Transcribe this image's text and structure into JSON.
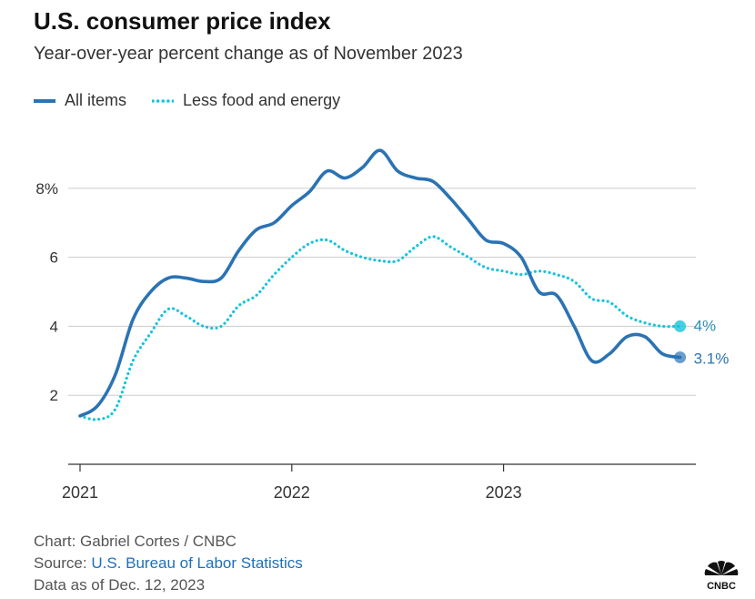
{
  "title": "U.S. consumer price index",
  "subtitle": "Year-over-year percent change as of November 2023",
  "colors": {
    "all_items": "#2b73b3",
    "core": "#19c3dc",
    "grid": "#cccccc",
    "axis": "#333333",
    "label": "#333333"
  },
  "chart_data": {
    "type": "line",
    "title": "U.S. consumer price index",
    "ylabel": "",
    "xlabel": "",
    "ylim": [
      0,
      9.5
    ],
    "y_ticks": [
      2,
      4,
      6,
      8
    ],
    "y_tick_labels": [
      "2",
      "4",
      "6",
      "8%"
    ],
    "x_ticks": [
      0,
      12,
      24
    ],
    "x_tick_labels": [
      "2021",
      "2022",
      "2023"
    ],
    "x_range": [
      0,
      34.5
    ],
    "series": [
      {
        "name": "All items",
        "style": "solid",
        "end_label": "3.1%",
        "x": [
          0,
          1,
          2,
          3,
          4,
          5,
          6,
          7,
          8,
          9,
          10,
          11,
          12,
          13,
          14,
          15,
          16,
          17,
          18,
          19,
          20,
          21,
          22,
          23,
          24,
          25,
          26,
          27,
          28,
          29,
          30,
          31,
          32,
          33,
          34
        ],
        "values": [
          1.4,
          1.7,
          2.6,
          4.2,
          5.0,
          5.4,
          5.4,
          5.3,
          5.4,
          6.2,
          6.8,
          7.0,
          7.5,
          7.9,
          8.5,
          8.3,
          8.6,
          9.1,
          8.5,
          8.3,
          8.2,
          7.7,
          7.1,
          6.5,
          6.4,
          6.0,
          5.0,
          4.9,
          4.0,
          3.0,
          3.2,
          3.7,
          3.7,
          3.2,
          3.1
        ]
      },
      {
        "name": "Less food and energy",
        "style": "dotted",
        "end_label": "4%",
        "x": [
          0,
          1,
          2,
          3,
          4,
          5,
          6,
          7,
          8,
          9,
          10,
          11,
          12,
          13,
          14,
          15,
          16,
          17,
          18,
          19,
          20,
          21,
          22,
          23,
          24,
          25,
          26,
          27,
          28,
          29,
          30,
          31,
          32,
          33,
          34
        ],
        "values": [
          1.4,
          1.3,
          1.6,
          3.0,
          3.8,
          4.5,
          4.3,
          4.0,
          4.0,
          4.6,
          4.9,
          5.5,
          6.0,
          6.4,
          6.5,
          6.2,
          6.0,
          5.9,
          5.9,
          6.3,
          6.6,
          6.3,
          6.0,
          5.7,
          5.6,
          5.5,
          5.6,
          5.5,
          5.3,
          4.8,
          4.7,
          4.3,
          4.1,
          4.0,
          4.0
        ]
      }
    ]
  },
  "footer": {
    "chart_credit": "Chart: Gabriel Cortes / CNBC",
    "source_label": "Source:",
    "source_link": "U.S. Bureau of Labor Statistics",
    "data_as_of": "Data as of Dec. 12, 2023"
  },
  "logo_text": "CNBC"
}
